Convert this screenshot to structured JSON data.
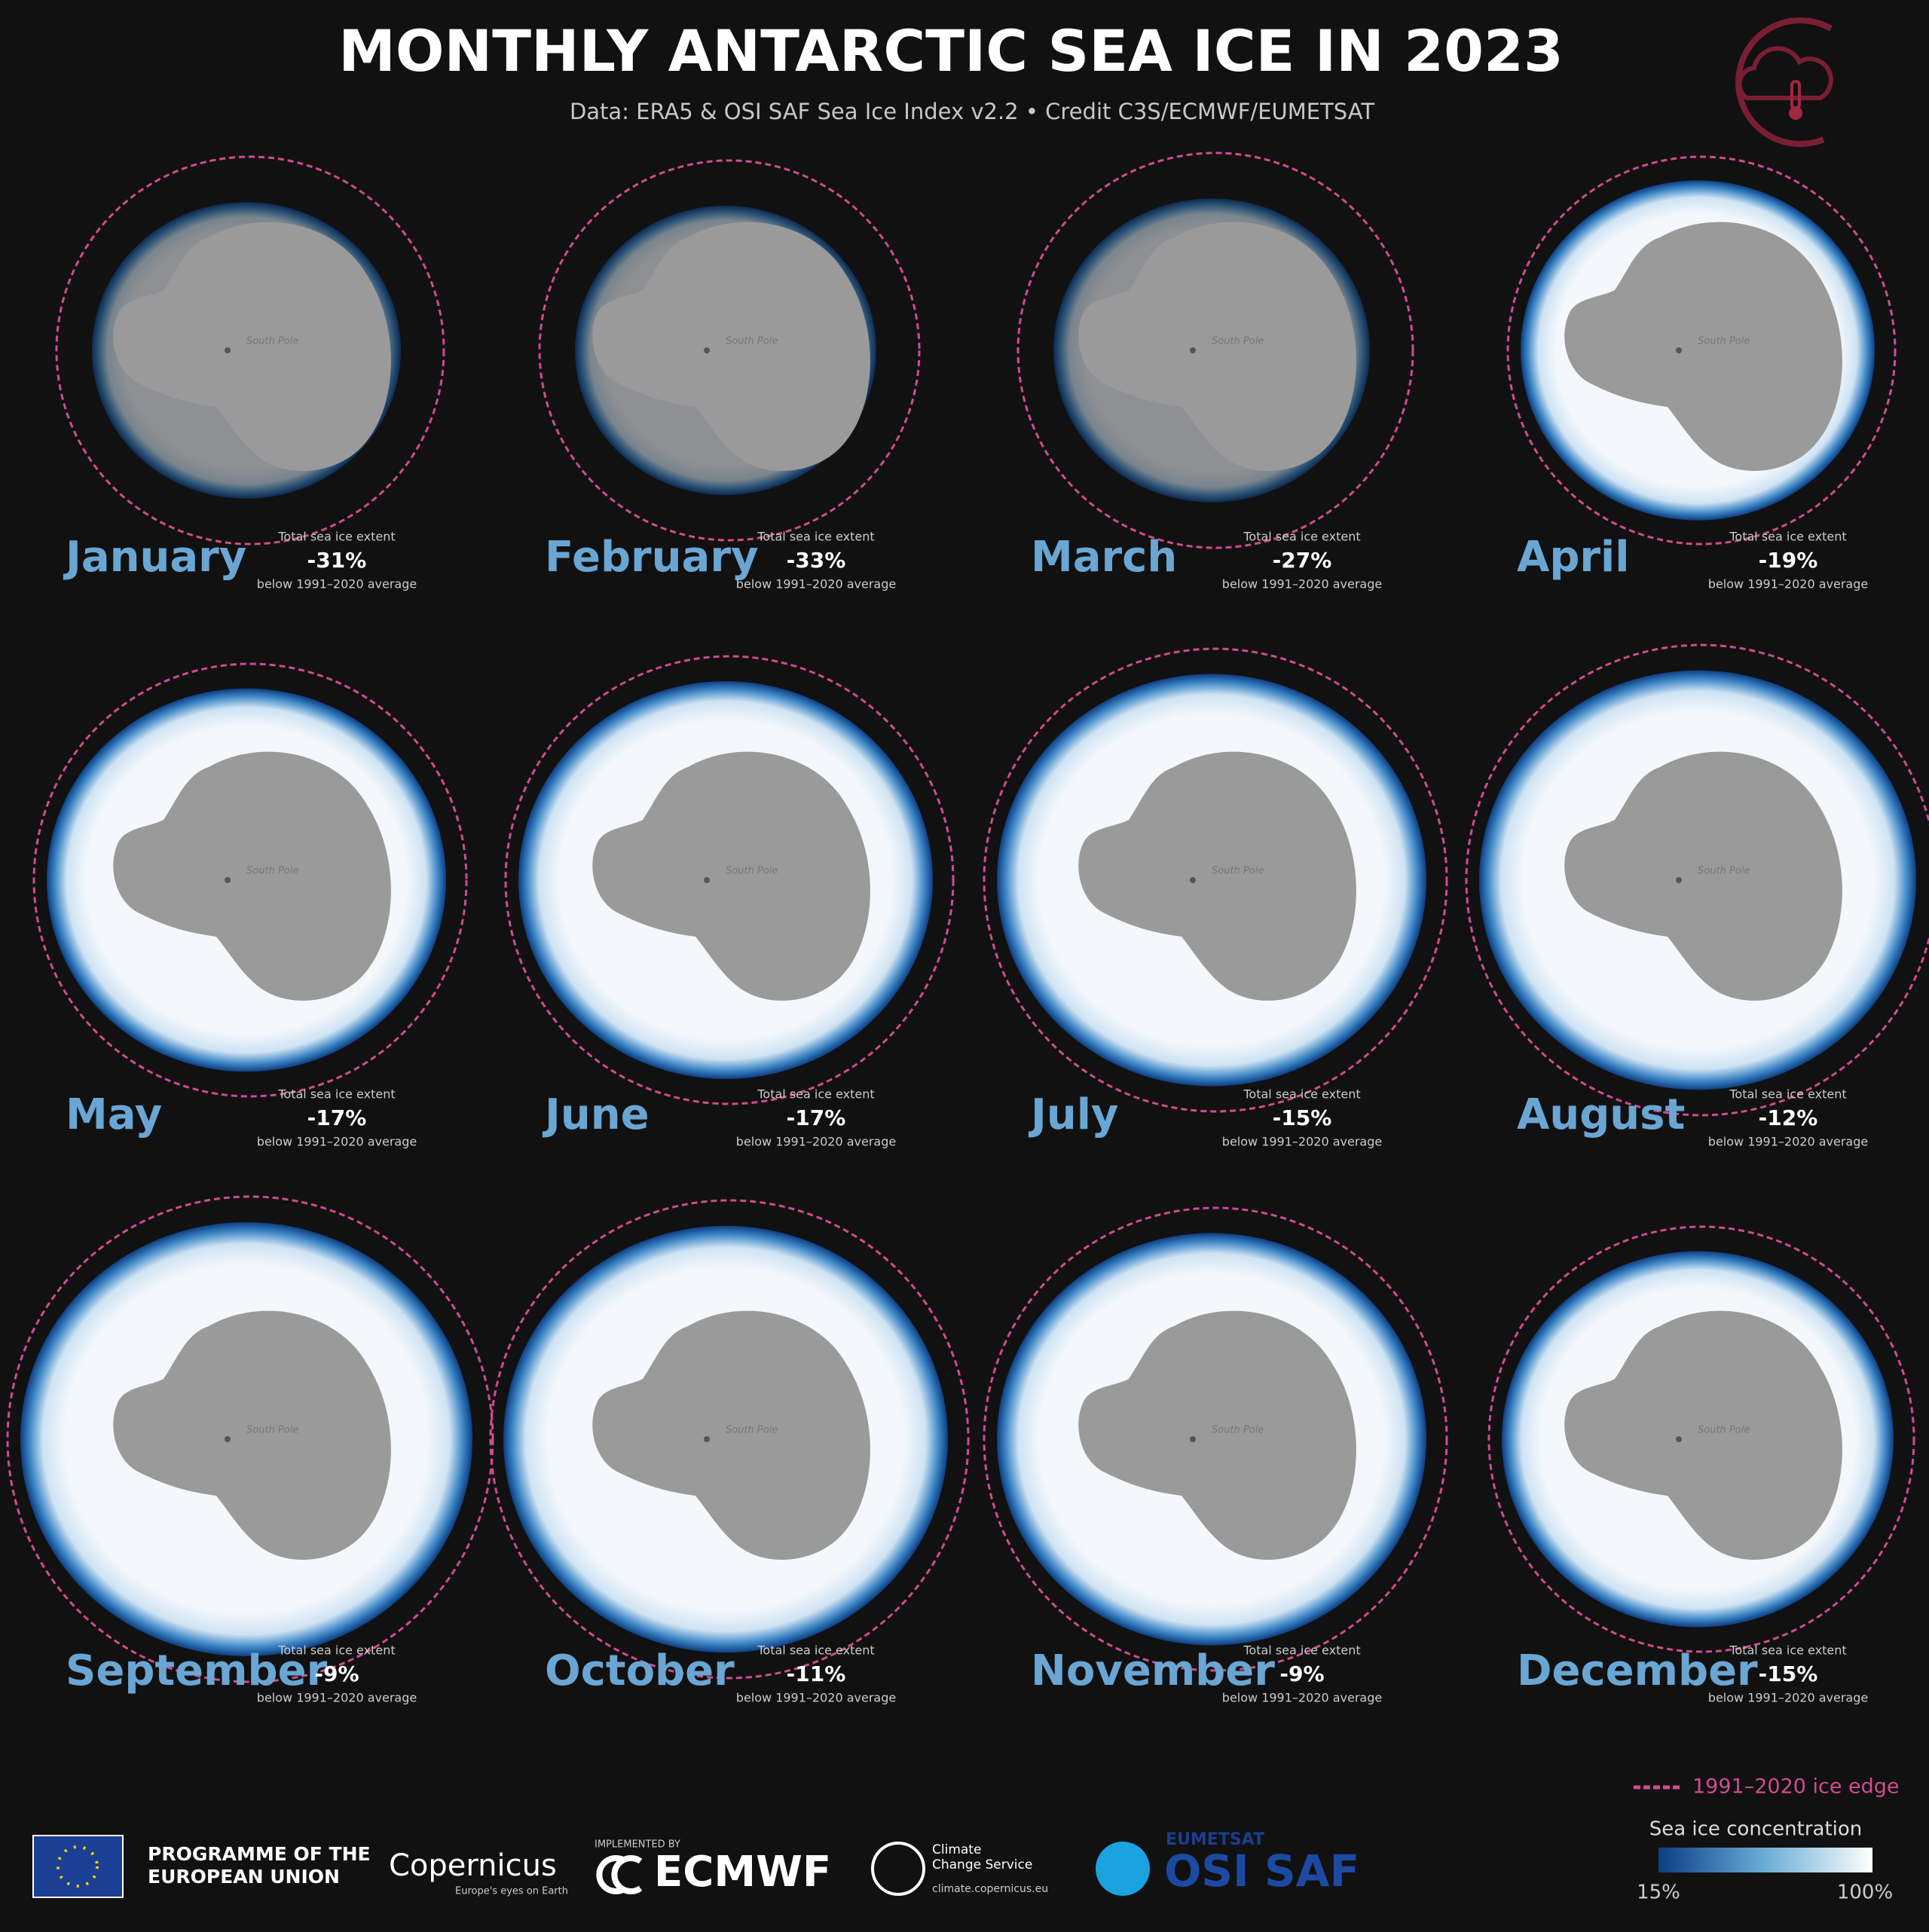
{
  "header": {
    "title": "MONTHLY ANTARCTIC SEA ICE IN 2023",
    "subtitle": "Data: ERA5 & OSI SAF Sea Ice Index v2.2 • Credit C3S/ECMWF/EUMETSAT"
  },
  "map_label": "South Pole",
  "extent_label": "Total sea ice extent",
  "below_label": "below 1991–2020 average",
  "panels": [
    {
      "month": "January",
      "anomaly": "-31%"
    },
    {
      "month": "February",
      "anomaly": "-33%"
    },
    {
      "month": "March",
      "anomaly": "-27%"
    },
    {
      "month": "April",
      "anomaly": "-19%"
    },
    {
      "month": "May",
      "anomaly": "-17%"
    },
    {
      "month": "June",
      "anomaly": "-17%"
    },
    {
      "month": "July",
      "anomaly": "-15%"
    },
    {
      "month": "August",
      "anomaly": "-12%"
    },
    {
      "month": "September",
      "anomaly": "-9%"
    },
    {
      "month": "October",
      "anomaly": "-11%"
    },
    {
      "month": "November",
      "anomaly": "-9%"
    },
    {
      "month": "December",
      "anomaly": "-15%"
    }
  ],
  "legend": {
    "edge": "1991–2020  ice edge",
    "scale_title": "Sea ice concentration",
    "min": "15%",
    "max": "100%"
  },
  "footer": {
    "eu_line1": "PROGRAMME OF THE",
    "eu_line2": "EUROPEAN UNION",
    "copernicus": "Copernicus",
    "copernicus_tag": "Europe's eyes on Earth",
    "implemented": "IMPLEMENTED BY",
    "ecmwf": "ECMWF",
    "c3s_line1": "Climate",
    "c3s_line2": "Change Service",
    "c3s_url": "climate.copernicus.eu",
    "eumetsat": "EUMETSAT",
    "osisaf": "OSI SAF"
  }
}
